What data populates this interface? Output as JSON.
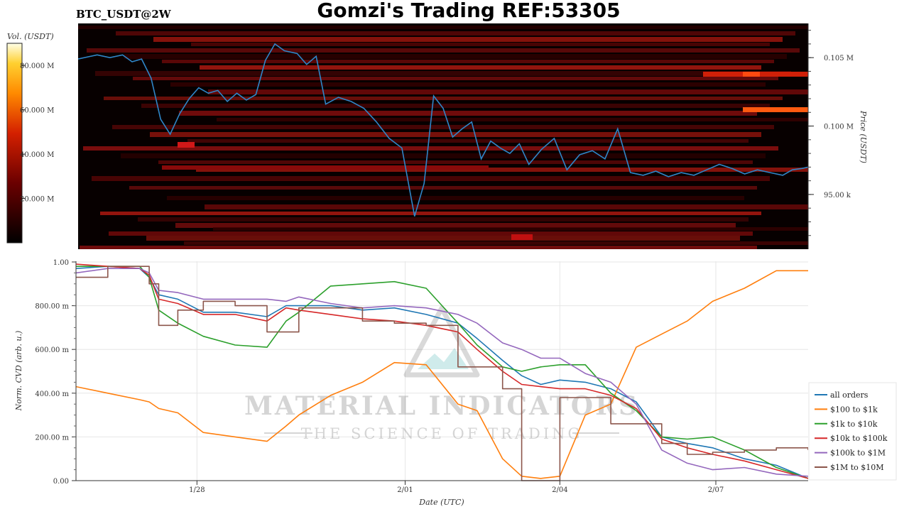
{
  "header": {
    "symbol": "BTC_USDT@2W",
    "title": "Gomzi's Trading REF:53305"
  },
  "watermark": {
    "brand": "MATERIAL INDICATORS",
    "tagline": "THE SCIENCE OF TRADING"
  },
  "colors": {
    "all_orders": "#1f77b4",
    "r100_1k": "#ff7f0e",
    "r1k_10k": "#2ca02c",
    "r10k_100k": "#d62728",
    "r100k_1m": "#9467bd",
    "r1m_10m": "#8c564b",
    "price_line": "#2f86c8"
  },
  "chart_data": [
    {
      "type": "heatmap",
      "title": "BTC_USDT@2W",
      "colorbar": {
        "label": "Vol. (USDT)",
        "ticks": [
          "20.000 M",
          "40.000 M",
          "60.000 M",
          "80.000 M"
        ],
        "range": [
          0,
          90
        ]
      },
      "ylabel": "Price (USDT)",
      "yticks": [
        {
          "label": "95.00 k",
          "value": 95000
        },
        {
          "label": "0.100 M",
          "value": 100000
        },
        {
          "label": "0.105 M",
          "value": 105000
        }
      ],
      "ylim": [
        91000,
        107500
      ],
      "price_series": {
        "name": "Price",
        "x": [
          0.0,
          0.3,
          0.5,
          0.7,
          0.85,
          1.0,
          1.15,
          1.3,
          1.45,
          1.6,
          1.75,
          1.9,
          2.05,
          2.2,
          2.35,
          2.5,
          2.65,
          2.8,
          2.95,
          3.1,
          3.25,
          3.45,
          3.6,
          3.75,
          3.9,
          4.1,
          4.3,
          4.5,
          4.7,
          4.9,
          5.1,
          5.3,
          5.45,
          5.6,
          5.75,
          5.9,
          6.05,
          6.2,
          6.35,
          6.5,
          6.65,
          6.8,
          6.95,
          7.1,
          7.3,
          7.5,
          7.7,
          7.9,
          8.1,
          8.3,
          8.5,
          8.7,
          8.9,
          9.1,
          9.3,
          9.5,
          9.7,
          9.9,
          10.1,
          10.3,
          10.5,
          10.7,
          10.9,
          11.1,
          11.25,
          11.4,
          11.5
        ],
        "y": [
          104900,
          105200,
          105000,
          105200,
          104700,
          104900,
          103500,
          100500,
          99400,
          100900,
          102000,
          102800,
          102400,
          102600,
          101800,
          102400,
          101900,
          102300,
          104800,
          106000,
          105500,
          105300,
          104500,
          105100,
          101600,
          102100,
          101800,
          101300,
          100300,
          99100,
          98400,
          93400,
          95800,
          102200,
          101300,
          99200,
          99800,
          100300,
          97600,
          98900,
          98400,
          98000,
          98700,
          97200,
          98300,
          99100,
          96800,
          97900,
          98200,
          97600,
          99800,
          96600,
          96400,
          96700,
          96300,
          96600,
          96400,
          96800,
          97200,
          96900,
          96500,
          96800,
          96600,
          96400,
          96800,
          96900,
          97000
        ]
      },
      "xlim": [
        0,
        11.5
      ]
    },
    {
      "type": "line",
      "xlabel": "Date (UTC)",
      "ylabel": "Norm. CVD (arb. u.)",
      "xticks": [
        {
          "label": "1/28",
          "value": 1.9
        },
        {
          "label": "2/01",
          "value": 5.17
        },
        {
          "label": "2/04",
          "value": 7.6
        },
        {
          "label": "2/07",
          "value": 10.05
        }
      ],
      "xlim": [
        0,
        11.5
      ],
      "yticks": [
        "0.00",
        "200.00 m",
        "400.00 m",
        "600.00 m",
        "800.00 m",
        "1.00"
      ],
      "ylim": [
        0,
        1.0
      ],
      "legend_position": "right",
      "x": [
        0.0,
        0.5,
        1.0,
        1.15,
        1.3,
        1.6,
        2.0,
        2.5,
        3.0,
        3.3,
        3.5,
        4.0,
        4.5,
        5.0,
        5.5,
        6.0,
        6.3,
        6.7,
        7.0,
        7.3,
        7.6,
        8.0,
        8.4,
        8.8,
        9.2,
        9.6,
        10.0,
        10.5,
        11.0,
        11.5
      ],
      "series": [
        {
          "name": "all orders",
          "values": [
            0.97,
            0.98,
            0.97,
            0.93,
            0.85,
            0.83,
            0.77,
            0.77,
            0.75,
            0.8,
            0.8,
            0.8,
            0.78,
            0.79,
            0.76,
            0.72,
            0.65,
            0.55,
            0.48,
            0.44,
            0.46,
            0.45,
            0.42,
            0.36,
            0.2,
            0.17,
            0.15,
            0.1,
            0.07,
            0.01
          ]
        },
        {
          "name": "$100 to $1k",
          "values": [
            0.43,
            0.4,
            0.37,
            0.36,
            0.33,
            0.31,
            0.22,
            0.2,
            0.18,
            0.25,
            0.3,
            0.39,
            0.45,
            0.54,
            0.53,
            0.35,
            0.32,
            0.1,
            0.02,
            0.01,
            0.02,
            0.3,
            0.35,
            0.61,
            0.67,
            0.73,
            0.82,
            0.88,
            0.96,
            0.96
          ]
        },
        {
          "name": "$1k to $10k",
          "values": [
            0.98,
            0.98,
            0.98,
            0.93,
            0.78,
            0.72,
            0.66,
            0.62,
            0.61,
            0.73,
            0.77,
            0.89,
            0.9,
            0.91,
            0.88,
            0.72,
            0.62,
            0.52,
            0.5,
            0.52,
            0.53,
            0.53,
            0.4,
            0.32,
            0.2,
            0.19,
            0.2,
            0.14,
            0.06,
            0.01
          ]
        },
        {
          "name": "$10k to $100k",
          "values": [
            0.99,
            0.98,
            0.97,
            0.94,
            0.83,
            0.81,
            0.76,
            0.76,
            0.73,
            0.79,
            0.78,
            0.76,
            0.74,
            0.73,
            0.71,
            0.68,
            0.6,
            0.5,
            0.44,
            0.43,
            0.42,
            0.42,
            0.39,
            0.33,
            0.19,
            0.15,
            0.12,
            0.09,
            0.05,
            0.01
          ]
        },
        {
          "name": "$100k to $1M",
          "values": [
            0.95,
            0.97,
            0.97,
            0.95,
            0.87,
            0.86,
            0.83,
            0.83,
            0.83,
            0.82,
            0.84,
            0.81,
            0.79,
            0.8,
            0.79,
            0.76,
            0.72,
            0.63,
            0.6,
            0.56,
            0.56,
            0.49,
            0.45,
            0.35,
            0.14,
            0.08,
            0.05,
            0.06,
            0.03,
            0.02
          ]
        },
        {
          "name": "$1M to $10M",
          "values": [
            0.93,
            0.98,
            0.98,
            0.9,
            0.71,
            0.78,
            0.82,
            0.8,
            0.68,
            0.68,
            0.79,
            0.79,
            0.73,
            0.72,
            0.71,
            0.52,
            0.52,
            0.42,
            0.0,
            0.0,
            0.38,
            0.38,
            0.26,
            0.26,
            0.17,
            0.12,
            0.13,
            0.14,
            0.15,
            0.14
          ]
        }
      ]
    }
  ]
}
